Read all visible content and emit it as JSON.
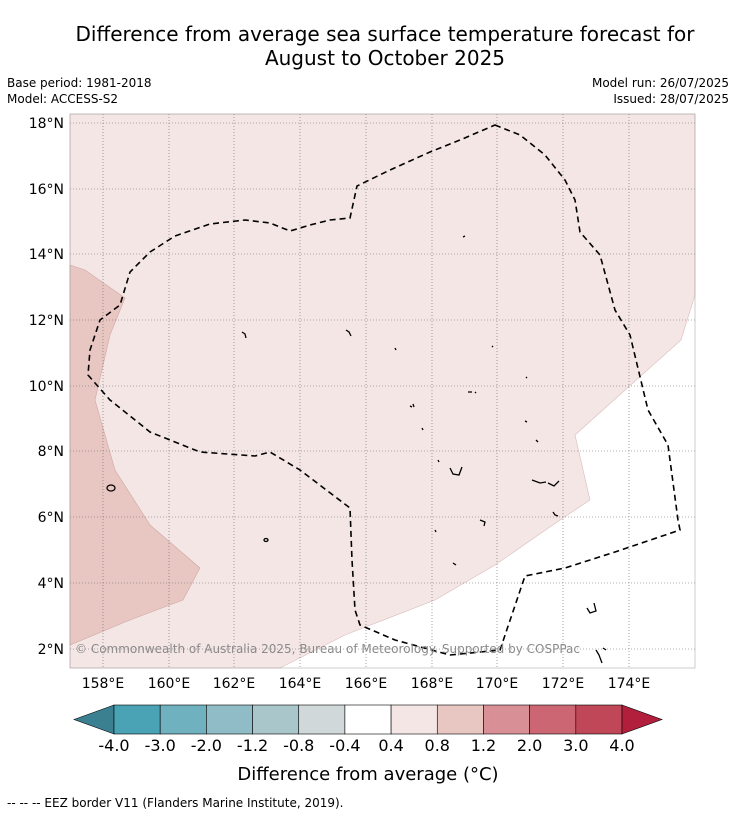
{
  "title_line1": "Difference from average sea surface temperature forecast for",
  "title_line2": "August to October 2025",
  "meta": {
    "base_period": "Base period: 1981-2018",
    "model": "Model: ACCESS-S2",
    "model_run": "Model run: 26/07/2025",
    "issued": "Issued: 28/07/2025"
  },
  "map": {
    "lat_labels": [
      "18°N",
      "16°N",
      "14°N",
      "12°N",
      "10°N",
      "8°N",
      "6°N",
      "4°N",
      "2°N"
    ],
    "lon_labels": [
      "158°E",
      "160°E",
      "162°E",
      "164°E",
      "166°E",
      "168°E",
      "170°E",
      "172°E",
      "174°E"
    ],
    "copyright": "© Commonwealth of Australia 2025, Bureau of Meteorology. Supported by COSPPac",
    "fill_colors": {
      "anomaly_0_4_to_0_8": "#f4e6e5",
      "anomaly_0_8_to_1_2": "#e8c6c2",
      "anomaly_below_0_4": "#ffffff"
    }
  },
  "colorbar": {
    "ticks": [
      "-4.0",
      "-3.0",
      "-2.0",
      "-1.2",
      "-0.8",
      "-0.4",
      "0.4",
      "0.8",
      "1.2",
      "2.0",
      "3.0",
      "4.0"
    ],
    "colors": [
      "#4aa3b5",
      "#6fb1bf",
      "#8fbcc6",
      "#a9c6cb",
      "#d0d8da",
      "#ffffff",
      "#f4e6e5",
      "#e8c6c2",
      "#d88f96",
      "#cb6672",
      "#c04757"
    ],
    "under_color": "#3b8090",
    "over_color": "#b11f3c",
    "label": "Difference from average (°C)"
  },
  "footer": "--  --  -- EEZ border V11 (Flanders Marine Institute, 2019)."
}
